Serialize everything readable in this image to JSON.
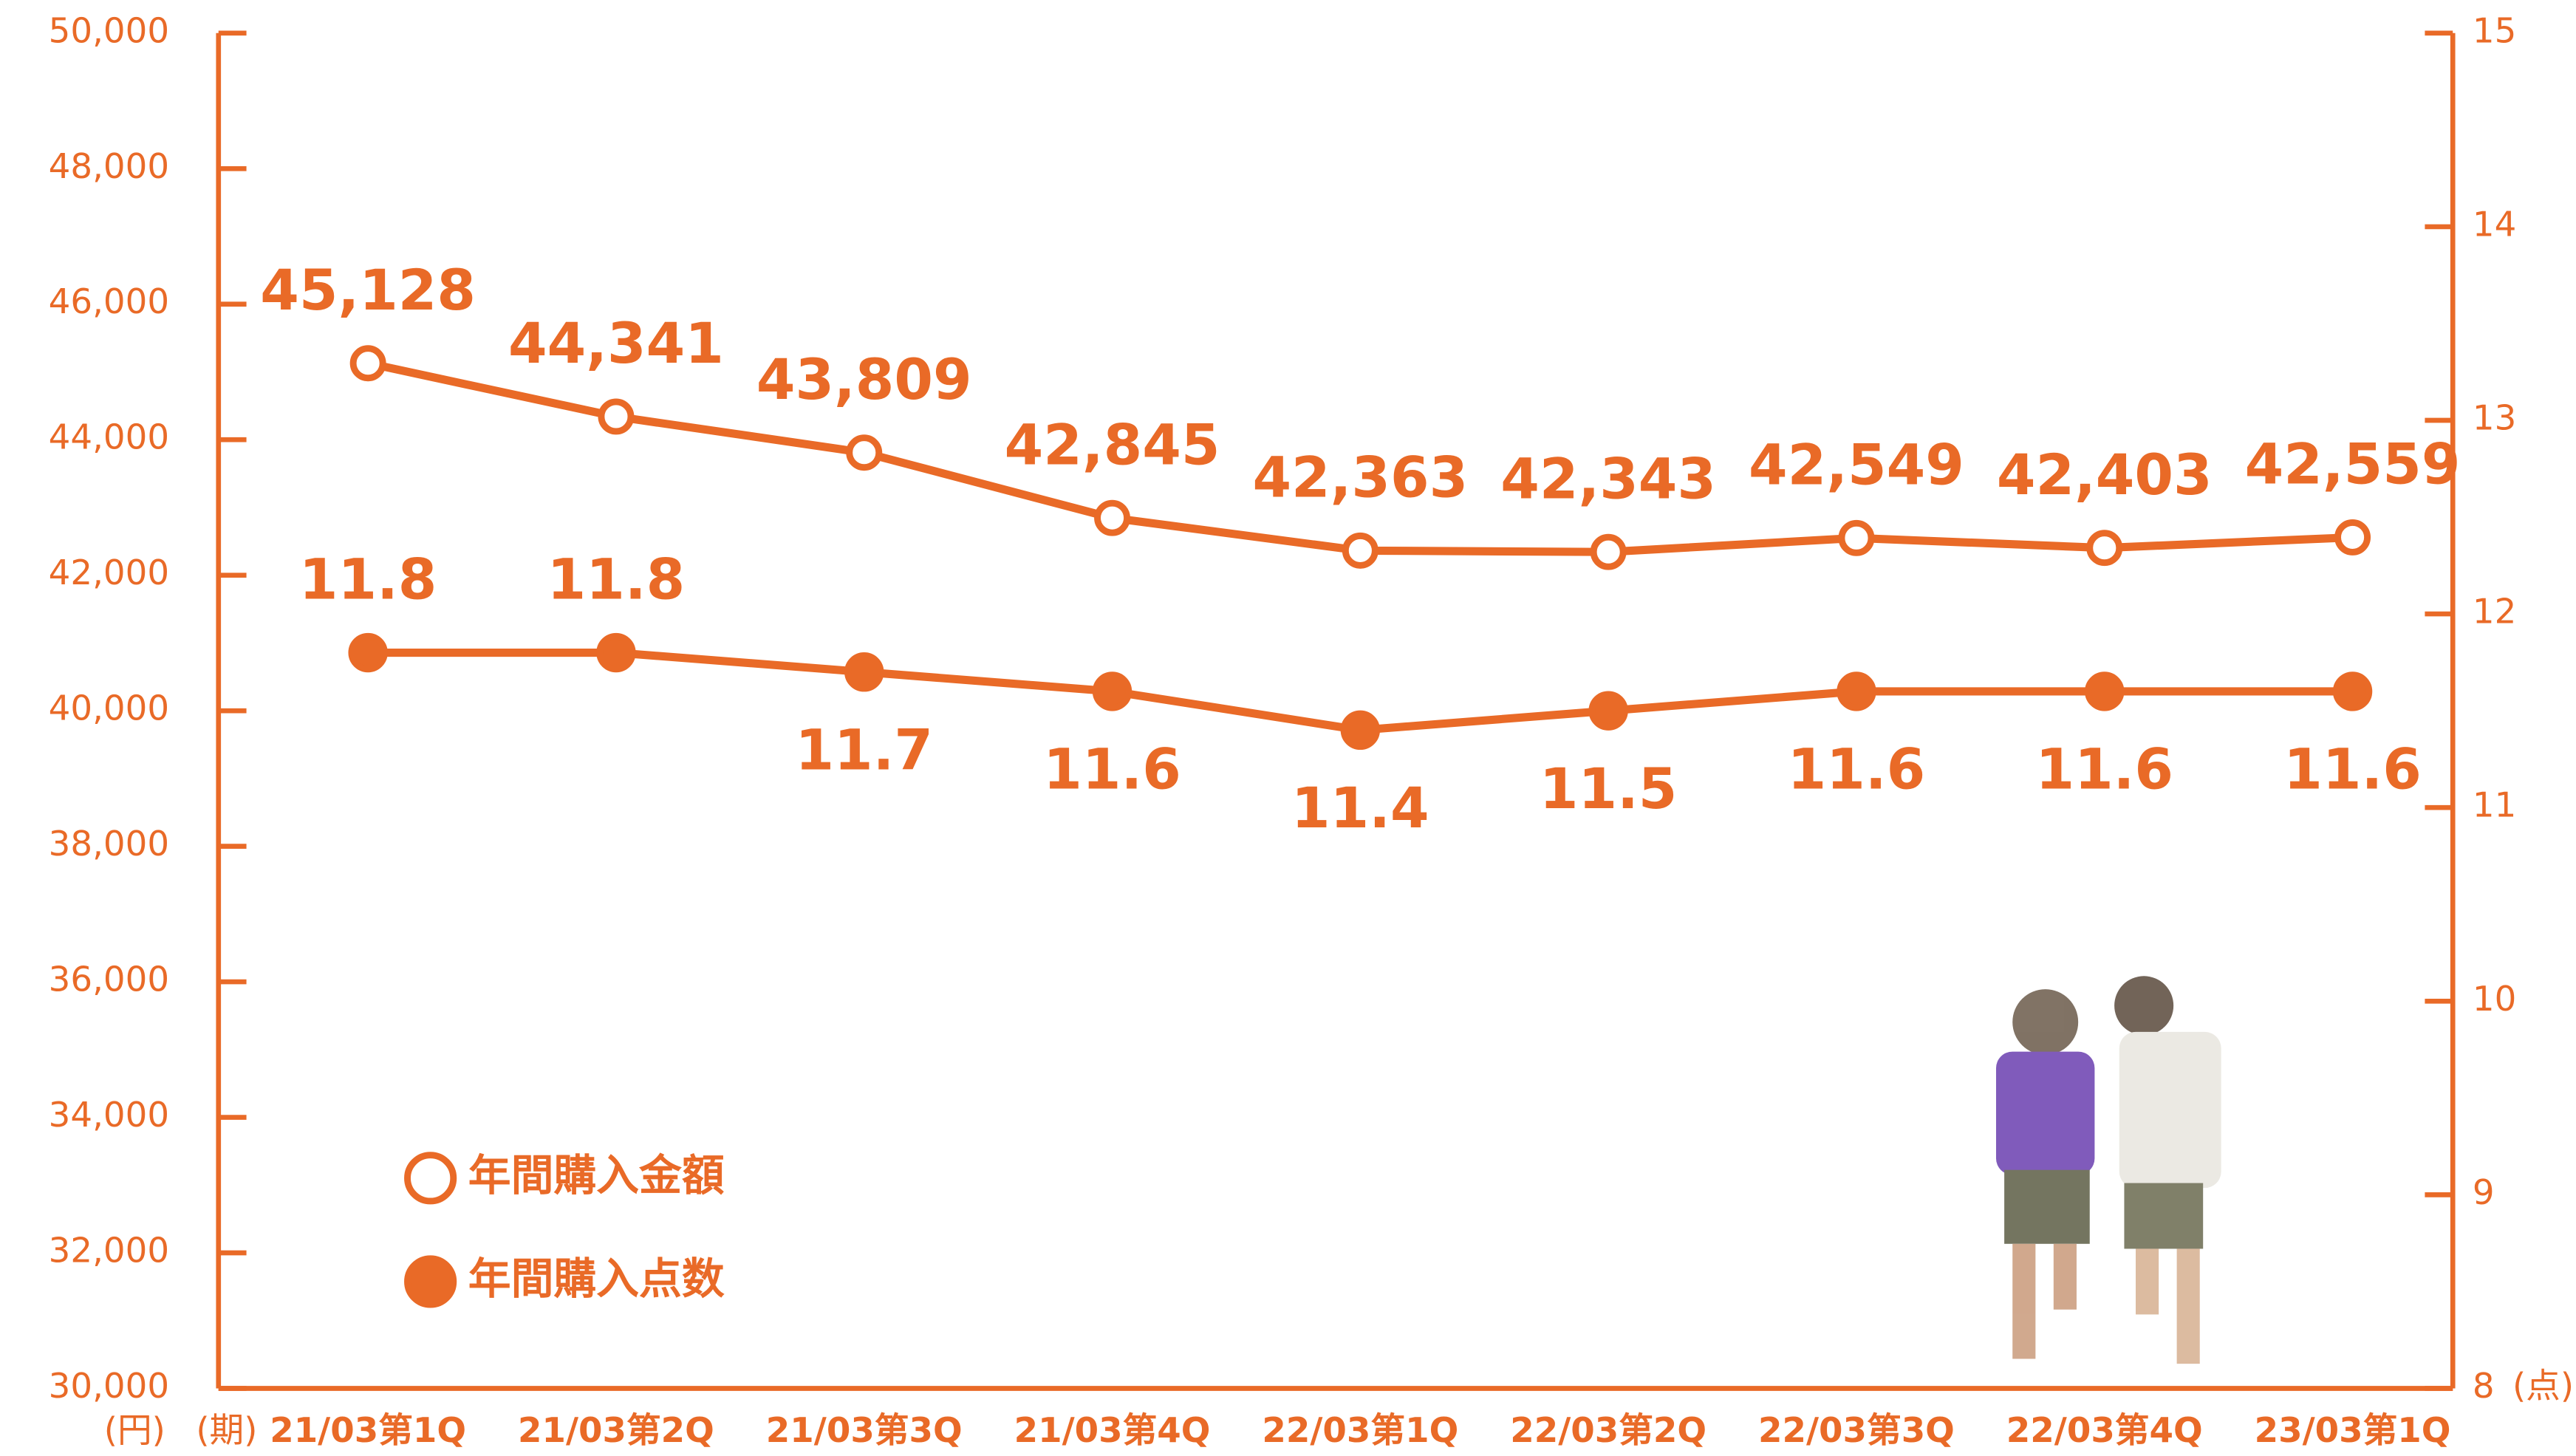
{
  "chart_data": {
    "type": "line",
    "categories": [
      "21/03第1Q",
      "21/03第2Q",
      "21/03第3Q",
      "21/03第4Q",
      "22/03第1Q",
      "22/03第2Q",
      "22/03第3Q",
      "22/03第4Q",
      "23/03第1Q"
    ],
    "x_unit": "(期)",
    "y_unit": "(円)",
    "y2_unit": "(点)",
    "series": [
      {
        "name": "年間購入金額",
        "color": "#e96a27",
        "marker": "open",
        "values": [
          45128,
          44341,
          43809,
          42845,
          42363,
          42343,
          42549,
          42403,
          42559
        ],
        "value_labels": [
          "45,128",
          "44,341",
          "43,809",
          "42,845",
          "42,363",
          "42,343",
          "42,549",
          "42,403",
          "42,559"
        ]
      },
      {
        "name": "年間購入点数",
        "color": "#e96a27",
        "marker": "filled",
        "axis": "y2",
        "values": [
          11.8,
          11.8,
          11.7,
          11.6,
          11.4,
          11.5,
          11.6,
          11.6,
          11.6
        ]
      }
    ],
    "ylim": [
      30000,
      50000
    ],
    "yticks": [
      {
        "value": 30000,
        "label": "30,000"
      },
      {
        "value": 32000,
        "label": "32,000"
      },
      {
        "value": 34000,
        "label": "34,000"
      },
      {
        "value": 36000,
        "label": "36,000"
      },
      {
        "value": 38000,
        "label": "38,000"
      },
      {
        "value": 40000,
        "label": "40,000"
      },
      {
        "value": 42000,
        "label": "42,000"
      },
      {
        "value": 44000,
        "label": "44,000"
      },
      {
        "value": 46000,
        "label": "46,000"
      },
      {
        "value": 48000,
        "label": "48,000"
      },
      {
        "value": 50000,
        "label": "50,000"
      }
    ],
    "y2lim": [
      8,
      15
    ],
    "y2ticks": [
      8,
      9,
      10,
      11,
      12,
      13,
      14,
      15
    ],
    "grid": false
  }
}
